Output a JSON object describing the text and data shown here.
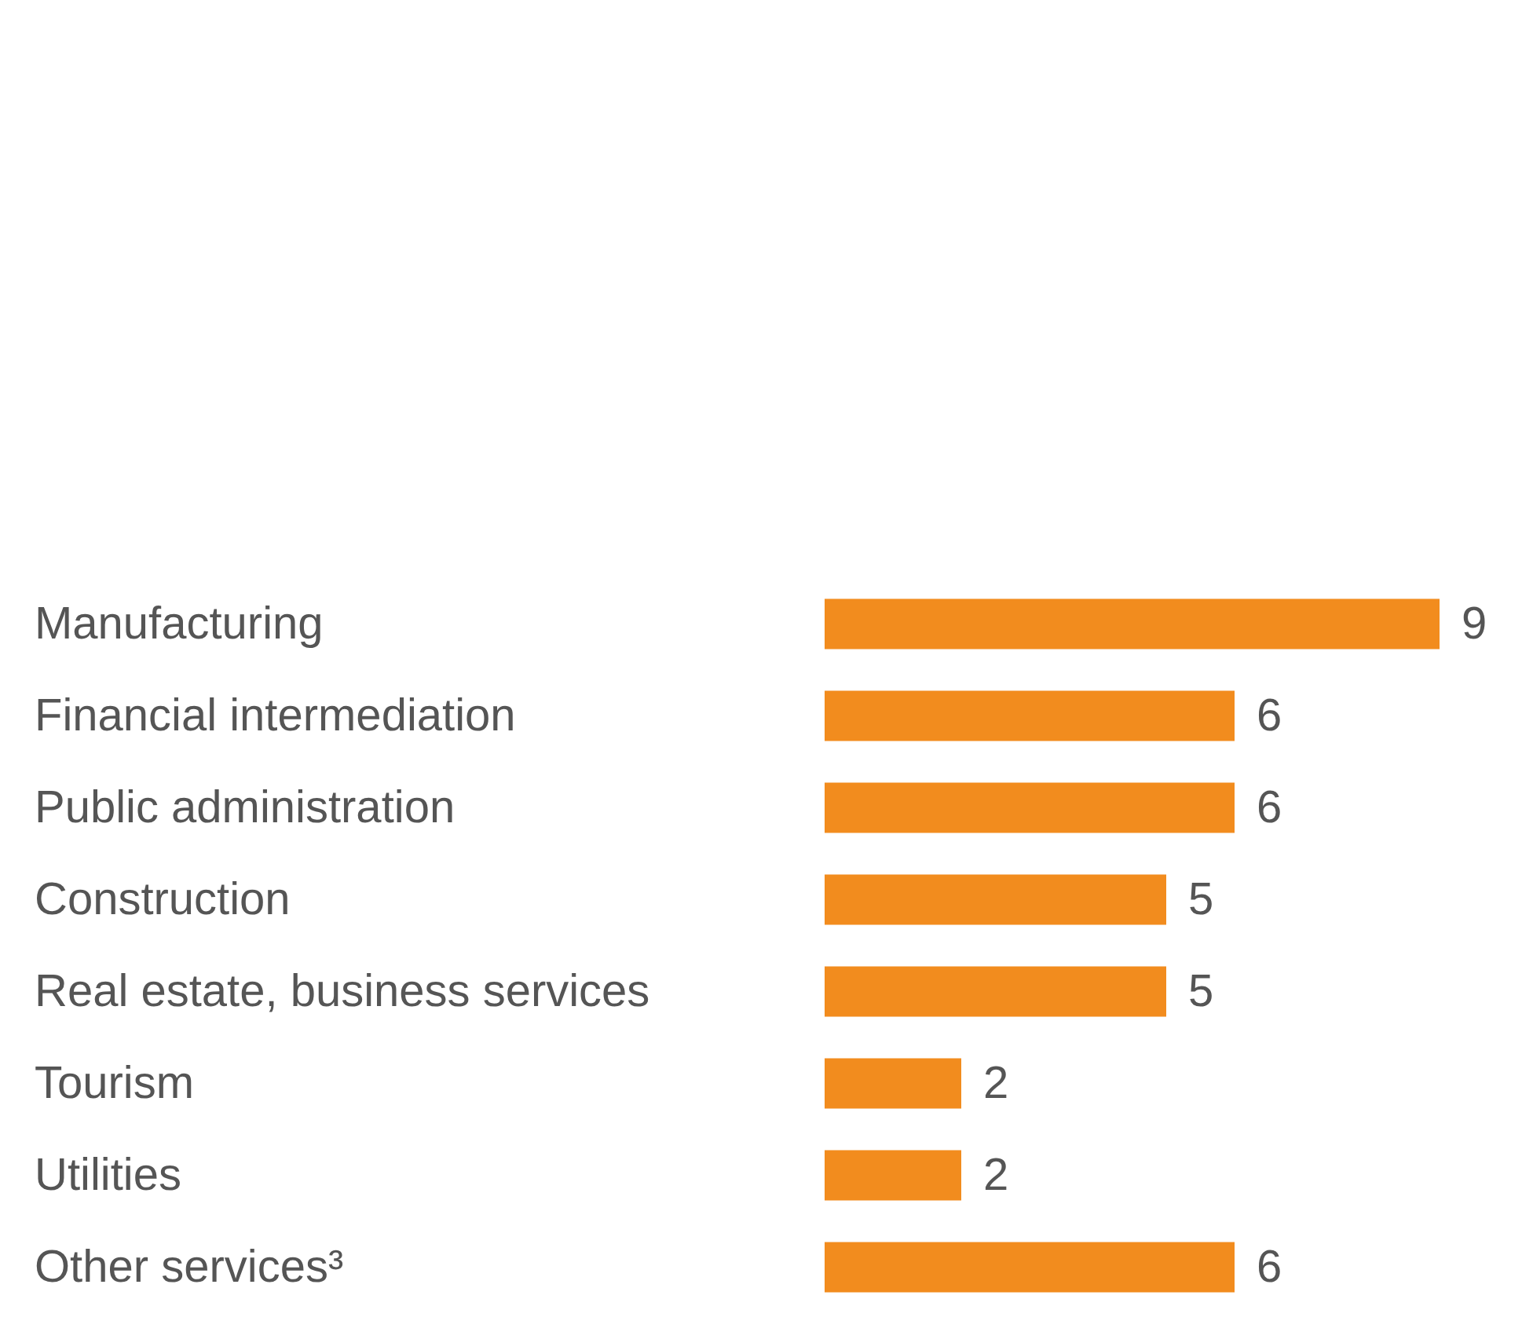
{
  "chart_data": {
    "type": "bar",
    "orientation": "horizontal",
    "categories": [
      "Manufacturing",
      "Financial intermediation",
      "Public administration",
      "Construction",
      "Real estate, business services",
      "Tourism",
      "Utilities",
      "Other services³"
    ],
    "values": [
      9,
      6,
      6,
      5,
      5,
      2,
      2,
      6
    ],
    "color": "#f28c1e",
    "data_labels": true,
    "xlim": [
      0,
      9
    ],
    "tick_labels": "y"
  }
}
